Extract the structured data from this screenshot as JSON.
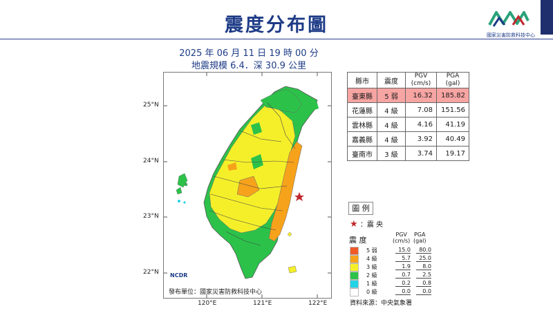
{
  "title": "震度分布圖",
  "org_name": "國家災害防救科技中心",
  "org_logo_text": "NCDR",
  "event": {
    "datetime": "2025 年 06 月 11 日 19 時 00 分",
    "magnitude_depth": "地震規模 6.4．深 30.9 公里"
  },
  "map": {
    "lat_ticks": [
      "25°N",
      "24°N",
      "23°N",
      "22°N"
    ],
    "lon_ticks": [
      "120°E",
      "121°E",
      "122°E"
    ],
    "publisher": "發布單位：國家災害防救科技中心",
    "publisher_logo_text": "NCDR"
  },
  "table": {
    "headers": [
      "縣市",
      "震度",
      "PGV\n(cm/s)",
      "PGA\n(gal)"
    ],
    "rows": [
      {
        "county": "臺東縣",
        "intensity": "5 弱",
        "pgv": "16.32",
        "pga": "185.82",
        "highlight": true
      },
      {
        "county": "花蓮縣",
        "intensity": "4 級",
        "pgv": "7.08",
        "pga": "151.56",
        "highlight": false
      },
      {
        "county": "雲林縣",
        "intensity": "4 級",
        "pgv": "4.16",
        "pga": "41.19",
        "highlight": false
      },
      {
        "county": "嘉義縣",
        "intensity": "4 級",
        "pgv": "3.92",
        "pga": "40.49",
        "highlight": false
      },
      {
        "county": "臺南市",
        "intensity": "3 級",
        "pgv": "3.74",
        "pga": "19.17",
        "highlight": false
      }
    ]
  },
  "legend": {
    "title": "圖 例",
    "epicenter_label": "：震 央",
    "col_intensity": "震 度",
    "col_pgv": "PGV\n(cm/s)",
    "col_pga": "PGA\n(gal)",
    "rows": [
      {
        "level": "5 弱",
        "pgv": "15.0",
        "pga": "80.0",
        "color": "#f05a28"
      },
      {
        "level": "4 級",
        "pgv": "5.7",
        "pga": "25.0",
        "color": "#f7a21b"
      },
      {
        "level": "3 級",
        "pgv": "1.9",
        "pga": "8.0",
        "color": "#f5ef2a"
      },
      {
        "level": "2 級",
        "pgv": "0.7",
        "pga": "2.5",
        "color": "#2cc24a"
      },
      {
        "level": "1 級",
        "pgv": "0.2",
        "pga": "0.8",
        "color": "#22d3e6"
      },
      {
        "level": "0 級",
        "pgv": "0.0",
        "pga": "0.0",
        "color": "#ffffff"
      }
    ]
  },
  "source": "資料來源：中央氣象署",
  "colors": {
    "title": "#1d3b86",
    "epicenter": "#c0262c",
    "highlight_row": "#f7a5a3"
  }
}
